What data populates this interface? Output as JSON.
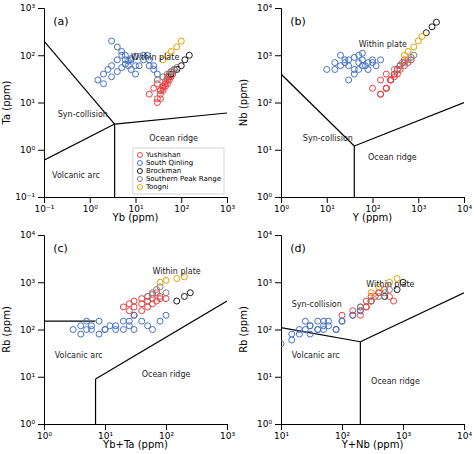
{
  "chart_data": [
    {
      "type": "scatter",
      "title": "(a)",
      "x_label": "Yb (ppm)",
      "y_label": "Ta (ppm)",
      "log": true,
      "grid": false,
      "marker": "circle",
      "legend": "lower right",
      "xlim": [
        0.1,
        1000
      ],
      "ylim": [
        0.1,
        1000
      ],
      "xticks": [
        {
          "value": 0.1,
          "label": "10⁻¹"
        },
        {
          "value": 1,
          "label": "10⁰"
        },
        {
          "value": 10,
          "label": "10¹"
        },
        {
          "value": 100,
          "label": "10²"
        },
        {
          "value": 1000,
          "label": "10³"
        }
      ],
      "yticks": [
        {
          "value": 0.1,
          "label": "10⁻¹"
        },
        {
          "value": 1,
          "label": "10⁰"
        },
        {
          "value": 10,
          "label": "10¹"
        },
        {
          "value": 100,
          "label": "10²"
        },
        {
          "value": 1000,
          "label": "10³"
        }
      ],
      "series": [
        {
          "name": "Yushishan",
          "color": "#e84040",
          "x": [
            20,
            25,
            30,
            35,
            40,
            45,
            50,
            55,
            60,
            70,
            35,
            40,
            45,
            50,
            55,
            60,
            65,
            30,
            35,
            40,
            45,
            50,
            55,
            30,
            35,
            40
          ],
          "values": [
            15,
            20,
            25,
            18,
            22,
            28,
            35,
            40,
            45,
            50,
            12,
            18,
            22,
            25,
            30,
            35,
            40,
            10,
            15,
            20,
            25,
            30,
            35,
            12,
            18,
            22
          ]
        },
        {
          "name": "South Qinling",
          "color": "#4472c4",
          "x": [
            1.5,
            2,
            2.5,
            3,
            4,
            5,
            6,
            7,
            8,
            10,
            12,
            15,
            18,
            20,
            25,
            30,
            3,
            4,
            5,
            6,
            8,
            10,
            15,
            20,
            25,
            2,
            3,
            4,
            5,
            6,
            7,
            8,
            10
          ],
          "values": [
            30,
            40,
            50,
            60,
            80,
            100,
            80,
            60,
            50,
            40,
            60,
            80,
            100,
            60,
            50,
            40,
            200,
            150,
            120,
            100,
            80,
            60,
            100,
            80,
            60,
            25,
            35,
            45,
            55,
            65,
            75,
            85,
            95
          ]
        },
        {
          "name": "Brockman",
          "color": "#1a1a1a",
          "x": [
            60,
            80,
            100,
            120,
            150
          ],
          "values": [
            40,
            50,
            60,
            80,
            100
          ]
        },
        {
          "name": "Southern Peak Range",
          "color": "#808080",
          "x": [
            30,
            40,
            50,
            60,
            70,
            80
          ],
          "values": [
            30,
            35,
            40,
            45,
            50,
            55
          ]
        },
        {
          "name": "Toogni",
          "color": "#e8a000",
          "x": [
            40,
            50,
            60,
            80,
            100
          ],
          "values": [
            80,
            100,
            120,
            150,
            200
          ]
        },
        {
          "type": "line",
          "line_style": "solid",
          "color": "#000000",
          "x": [
            3.5,
            0.1
          ],
          "values": [
            3.5,
            200
          ]
        },
        {
          "type": "line",
          "line_style": "solid",
          "color": "#000000",
          "x": [
            3.5,
            0.1
          ],
          "values": [
            3.5,
            0.6
          ]
        },
        {
          "type": "line",
          "line_style": "solid",
          "color": "#000000",
          "x": [
            3.5,
            3.5
          ],
          "values": [
            3.5,
            0.1
          ]
        },
        {
          "type": "line",
          "line_style": "solid",
          "color": "#000000",
          "x": [
            3.5,
            1000
          ],
          "values": [
            3.5,
            6
          ]
        }
      ],
      "annotations": [
        {
          "text": "Within plate",
          "x": 8,
          "y": 80
        },
        {
          "text": "Syn-collision",
          "x": 0.2,
          "y": 5
        },
        {
          "text": "Volcanic arc",
          "x": 0.15,
          "y": 0.25
        },
        {
          "text": "Ocean ridge",
          "x": 20,
          "y": 1.5
        }
      ]
    },
    {
      "type": "scatter",
      "title": "(b)",
      "x_label": "Y (ppm)",
      "y_label": "Nb (ppm)",
      "log": true,
      "grid": false,
      "marker": "circle",
      "xlim": [
        1,
        10000
      ],
      "ylim": [
        1,
        10000
      ],
      "xticks": [
        {
          "value": 1,
          "label": "10⁰"
        },
        {
          "value": 10,
          "label": "10¹"
        },
        {
          "value": 100,
          "label": "10²"
        },
        {
          "value": 1000,
          "label": "10³"
        },
        {
          "value": 10000,
          "label": "10⁴"
        }
      ],
      "yticks": [
        {
          "value": 1,
          "label": "10⁰"
        },
        {
          "value": 10,
          "label": "10¹"
        },
        {
          "value": 100,
          "label": "10²"
        },
        {
          "value": 1000,
          "label": "10³"
        },
        {
          "value": 10000,
          "label": "10⁴"
        }
      ],
      "series": [
        {
          "name": "Yushishan",
          "color": "#e84040",
          "x": [
            100,
            150,
            200,
            250,
            300,
            350,
            400,
            500,
            600,
            700,
            200,
            250,
            300,
            350,
            400,
            450,
            500,
            150,
            200,
            250,
            300,
            350,
            400,
            150,
            200,
            250
          ],
          "values": [
            200,
            300,
            400,
            300,
            350,
            400,
            500,
            600,
            700,
            800,
            200,
            300,
            400,
            500,
            600,
            700,
            800,
            150,
            200,
            300,
            400,
            500,
            600,
            150,
            200,
            300
          ]
        },
        {
          "name": "South Qinling",
          "color": "#4472c4",
          "x": [
            10,
            15,
            20,
            25,
            30,
            40,
            50,
            60,
            70,
            80,
            100,
            120,
            150,
            30,
            40,
            50,
            60,
            80,
            100,
            15,
            20,
            25,
            30,
            40,
            50,
            60
          ],
          "values": [
            500,
            700,
            1000,
            800,
            600,
            500,
            700,
            800,
            600,
            500,
            700,
            600,
            800,
            300,
            400,
            500,
            600,
            700,
            800,
            500,
            600,
            700,
            800,
            900,
            1000,
            1100
          ]
        },
        {
          "name": "Brockman",
          "color": "#1a1a1a",
          "x": [
            1500,
            2000,
            2500
          ],
          "values": [
            3000,
            4000,
            5000
          ]
        },
        {
          "name": "Southern Peak Range",
          "color": "#808080",
          "x": [
            300,
            400,
            500,
            600,
            700,
            800
          ],
          "values": [
            500,
            600,
            700,
            800,
            900,
            1000
          ]
        },
        {
          "name": "Toogni",
          "color": "#e8a000",
          "x": [
            500,
            600,
            800,
            1000,
            1200
          ],
          "values": [
            1000,
            1200,
            1500,
            2000,
            2500
          ]
        },
        {
          "type": "line",
          "line_style": "solid",
          "color": "#000000",
          "x": [
            40,
            1
          ],
          "values": [
            12,
            400
          ]
        },
        {
          "type": "line",
          "line_style": "solid",
          "color": "#000000",
          "x": [
            40,
            40
          ],
          "values": [
            12,
            1
          ]
        },
        {
          "type": "line",
          "line_style": "solid",
          "color": "#000000",
          "x": [
            40,
            10000
          ],
          "values": [
            12,
            100
          ]
        }
      ],
      "annotations": [
        {
          "text": "Within plate",
          "x": 50,
          "y": 1500
        },
        {
          "text": "Syn-collision",
          "x": 3,
          "y": 15
        },
        {
          "text": "Ocean ridge",
          "x": 80,
          "y": 6
        }
      ]
    },
    {
      "type": "scatter",
      "title": "(c)",
      "x_label": "Yb+Ta (ppm)",
      "y_label": "Rb (ppm)",
      "log": true,
      "grid": false,
      "marker": "circle",
      "xlim": [
        1,
        1000
      ],
      "ylim": [
        1,
        10000
      ],
      "xticks": [
        {
          "value": 1,
          "label": "10⁰"
        },
        {
          "value": 10,
          "label": "10¹"
        },
        {
          "value": 100,
          "label": "10²"
        },
        {
          "value": 1000,
          "label": "10³"
        }
      ],
      "yticks": [
        {
          "value": 1,
          "label": "10⁰"
        },
        {
          "value": 10,
          "label": "10¹"
        },
        {
          "value": 100,
          "label": "10²"
        },
        {
          "value": 1000,
          "label": "10³"
        },
        {
          "value": 10000,
          "label": "10⁴"
        }
      ],
      "series": [
        {
          "name": "Yushishan",
          "color": "#e84040",
          "x": [
            20,
            25,
            30,
            40,
            50,
            60,
            70,
            80,
            100,
            30,
            40,
            50,
            60,
            70,
            80,
            25,
            30,
            40,
            50,
            60
          ],
          "values": [
            300,
            350,
            400,
            450,
            500,
            550,
            600,
            500,
            450,
            200,
            250,
            300,
            350,
            400,
            450,
            250,
            300,
            350,
            400,
            450
          ]
        },
        {
          "name": "South Qinling",
          "color": "#4472c4",
          "x": [
            3,
            4,
            5,
            6,
            8,
            10,
            12,
            15,
            20,
            25,
            30,
            40,
            50,
            60,
            80,
            100,
            4,
            5,
            6,
            8,
            10,
            15,
            20,
            25,
            30
          ],
          "values": [
            100,
            120,
            150,
            100,
            80,
            100,
            120,
            100,
            150,
            120,
            100,
            150,
            120,
            100,
            150,
            200,
            80,
            100,
            120,
            150,
            100,
            120,
            100,
            150,
            200
          ]
        },
        {
          "name": "Brockman",
          "color": "#1a1a1a",
          "x": [
            150,
            200,
            250
          ],
          "values": [
            400,
            500,
            600
          ]
        },
        {
          "name": "Southern Peak Range",
          "color": "#808080",
          "x": [
            50,
            60,
            70,
            80,
            100
          ],
          "values": [
            500,
            600,
            700,
            800,
            600
          ]
        },
        {
          "name": "Toogni",
          "color": "#e8a000",
          "x": [
            80,
            100,
            150,
            200
          ],
          "values": [
            1000,
            1100,
            1200,
            1300
          ]
        },
        {
          "type": "line",
          "line_style": "solid",
          "color": "#000000",
          "x": [
            1,
            7
          ],
          "values": [
            150,
            150
          ]
        },
        {
          "type": "line",
          "line_style": "solid",
          "color": "#000000",
          "x": [
            7,
            7
          ],
          "values": [
            9,
            1
          ]
        },
        {
          "type": "line",
          "line_style": "solid",
          "color": "#000000",
          "x": [
            7,
            1000
          ],
          "values": [
            9,
            400
          ]
        }
      ],
      "annotations": [
        {
          "text": "Within plate",
          "x": 60,
          "y": 1500
        },
        {
          "text": "Volcanic arc",
          "x": 1.5,
          "y": 25
        },
        {
          "text": "Ocean ridge",
          "x": 40,
          "y": 10
        }
      ]
    },
    {
      "type": "scatter",
      "title": "(d)",
      "x_label": "Y+Nb (ppm)",
      "y_label": "Rb (ppm)",
      "log": true,
      "grid": false,
      "marker": "circle",
      "xlim": [
        10,
        10000
      ],
      "ylim": [
        1,
        10000
      ],
      "xticks": [
        {
          "value": 10,
          "label": "10¹"
        },
        {
          "value": 100,
          "label": "10²"
        },
        {
          "value": 1000,
          "label": "10³"
        },
        {
          "value": 10000,
          "label": "10⁴"
        }
      ],
      "yticks": [
        {
          "value": 1,
          "label": "10⁰"
        },
        {
          "value": 10,
          "label": "10¹"
        },
        {
          "value": 100,
          "label": "10²"
        },
        {
          "value": 1000,
          "label": "10³"
        },
        {
          "value": 10000,
          "label": "10⁴"
        }
      ],
      "series": [
        {
          "name": "Yushishan",
          "color": "#e84040",
          "x": [
            100,
            150,
            200,
            250,
            300,
            400,
            500,
            600,
            700,
            200,
            250,
            300,
            350,
            400,
            150,
            200,
            250,
            300
          ],
          "values": [
            200,
            250,
            300,
            400,
            500,
            600,
            700,
            500,
            400,
            200,
            300,
            400,
            500,
            600,
            200,
            250,
            300,
            400
          ]
        },
        {
          "name": "South Qinling",
          "color": "#4472c4",
          "x": [
            10,
            15,
            20,
            25,
            30,
            40,
            50,
            60,
            80,
            100,
            150,
            200,
            30,
            40,
            50,
            60,
            80,
            100,
            15,
            20,
            25,
            30,
            40,
            50
          ],
          "values": [
            50,
            80,
            100,
            150,
            120,
            100,
            150,
            120,
            100,
            150,
            200,
            250,
            80,
            100,
            120,
            150,
            100,
            150,
            60,
            80,
            100,
            120,
            150,
            100
          ]
        },
        {
          "name": "Brockman",
          "color": "#1a1a1a",
          "x": [
            500,
            800,
            1000
          ],
          "values": [
            500,
            700,
            1000
          ]
        },
        {
          "name": "Southern Peak Range",
          "color": "#808080",
          "x": [
            200,
            300,
            400,
            500,
            600
          ],
          "values": [
            300,
            400,
            500,
            600,
            700
          ]
        },
        {
          "name": "Toogni",
          "color": "#e8a000",
          "x": [
            300,
            400,
            600,
            800
          ],
          "values": [
            600,
            800,
            1000,
            1200
          ]
        },
        {
          "type": "line",
          "line_style": "solid",
          "color": "#000000",
          "x": [
            10,
            200
          ],
          "values": [
            110,
            55
          ]
        },
        {
          "type": "line",
          "line_style": "solid",
          "color": "#000000",
          "x": [
            200,
            200
          ],
          "values": [
            55,
            1
          ]
        },
        {
          "type": "line",
          "line_style": "solid",
          "color": "#000000",
          "x": [
            200,
            10000
          ],
          "values": [
            55,
            600
          ]
        }
      ],
      "annotations": [
        {
          "text": "Within plate",
          "x": 250,
          "y": 800
        },
        {
          "text": "Syn-collision",
          "x": 15,
          "y": 300
        },
        {
          "text": "Volcanic arc",
          "x": 15,
          "y": 25
        },
        {
          "text": "Ocean ridge",
          "x": 300,
          "y": 7
        }
      ]
    }
  ]
}
